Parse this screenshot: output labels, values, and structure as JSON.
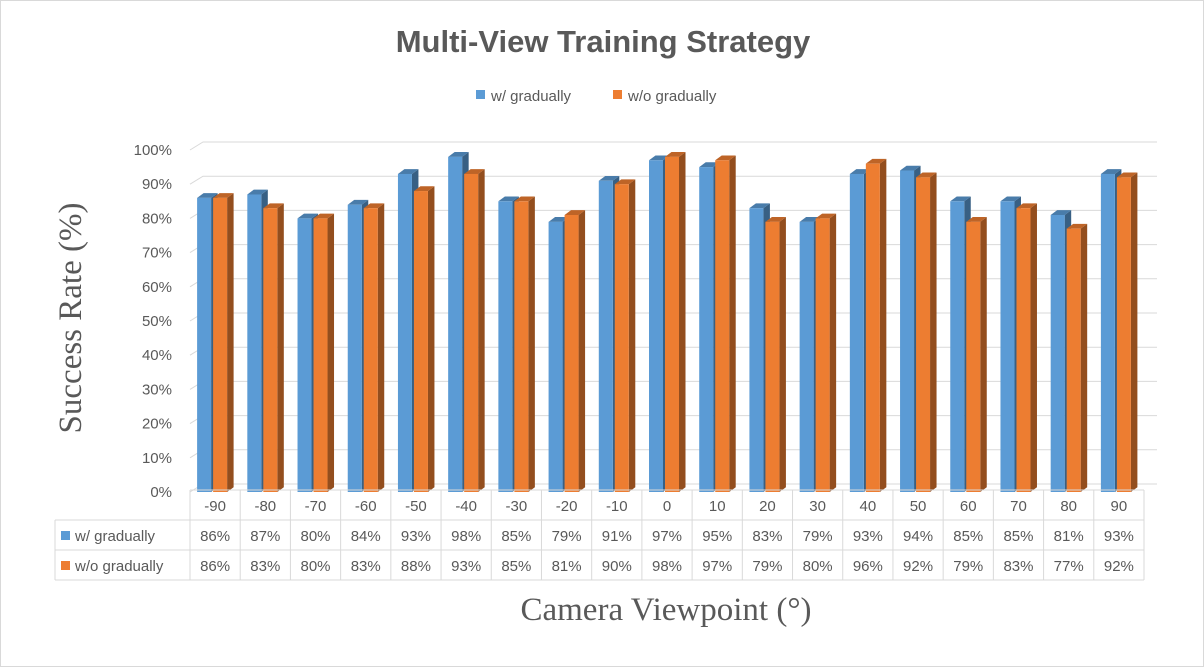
{
  "chart_data": {
    "type": "bar",
    "title": "Multi-View Training Strategy",
    "xlabel": "Camera Viewpoint (°)",
    "ylabel": "Success Rate (%)",
    "categories": [
      "-90",
      "-80",
      "-70",
      "-60",
      "-50",
      "-40",
      "-30",
      "-20",
      "-10",
      "0",
      "10",
      "20",
      "30",
      "40",
      "50",
      "60",
      "70",
      "80",
      "90"
    ],
    "series": [
      {
        "name": "w/ gradually",
        "color": "#5b9bd5",
        "values": [
          86,
          87,
          80,
          84,
          93,
          98,
          85,
          79,
          91,
          97,
          95,
          83,
          79,
          93,
          94,
          85,
          85,
          81,
          93
        ],
        "labels": [
          "86%",
          "87%",
          "80%",
          "84%",
          "93%",
          "98%",
          "85%",
          "79%",
          "91%",
          "97%",
          "95%",
          "83%",
          "79%",
          "93%",
          "94%",
          "85%",
          "85%",
          "81%",
          "93%"
        ]
      },
      {
        "name": "w/o gradually",
        "color": "#ed7d31",
        "values": [
          86,
          83,
          80,
          83,
          88,
          93,
          85,
          81,
          90,
          98,
          97,
          79,
          80,
          96,
          92,
          79,
          83,
          77,
          92
        ],
        "labels": [
          "86%",
          "83%",
          "80%",
          "83%",
          "88%",
          "93%",
          "85%",
          "81%",
          "90%",
          "98%",
          "97%",
          "79%",
          "80%",
          "96%",
          "92%",
          "79%",
          "83%",
          "77%",
          "92%"
        ]
      }
    ],
    "ylim": [
      0,
      100
    ],
    "yticks": [
      "0%",
      "10%",
      "20%",
      "30%",
      "40%",
      "50%",
      "60%",
      "70%",
      "80%",
      "90%",
      "100%"
    ],
    "grid": true,
    "legend": "top",
    "data_table": true
  }
}
